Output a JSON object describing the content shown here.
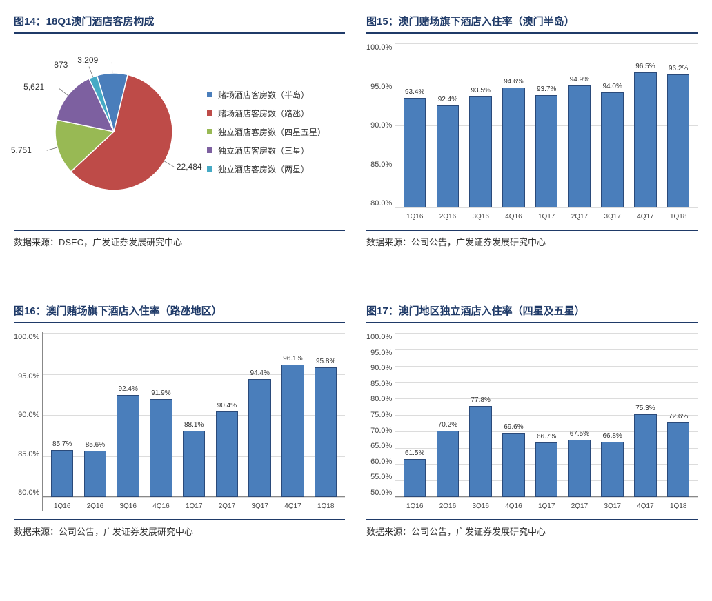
{
  "fig14": {
    "title": "图14：18Q1澳门酒店客房构成",
    "source": "数据来源：DSEC，广发证券发展研究中心",
    "type": "pie",
    "slices": [
      {
        "label": "赌场酒店客房数（半岛）",
        "value": 3209,
        "display": "3,209",
        "color": "#4a7ebb"
      },
      {
        "label": "赌场酒店客房数（路氹）",
        "value": 22484,
        "display": "22,484",
        "color": "#be4b48"
      },
      {
        "label": "独立酒店客房数（四星五星）",
        "value": 5751,
        "display": "5,751",
        "color": "#98b954"
      },
      {
        "label": "独立酒店客房数（三星）",
        "value": 5621,
        "display": "5,621",
        "color": "#7d60a0"
      },
      {
        "label": "独立酒店客房数（两星）",
        "value": 873,
        "display": "873",
        "color": "#46aac5"
      }
    ],
    "outline_color": "#ffffff",
    "label_fontsize": 12
  },
  "fig15": {
    "title": "图15：澳门赌场旗下酒店入住率（澳门半岛）",
    "source": "数据来源：公司公告，广发证券发展研究中心",
    "type": "bar",
    "ylim": [
      80,
      100
    ],
    "ytick_step": 5,
    "yticks": [
      "100.0%",
      "95.0%",
      "90.0%",
      "85.0%",
      "80.0%"
    ],
    "categories": [
      "1Q16",
      "2Q16",
      "3Q16",
      "4Q16",
      "1Q17",
      "2Q17",
      "3Q17",
      "4Q17",
      "1Q18"
    ],
    "values": [
      93.4,
      92.4,
      93.5,
      94.6,
      93.7,
      94.9,
      94.0,
      96.5,
      96.2
    ],
    "value_labels": [
      "93.4%",
      "92.4%",
      "93.5%",
      "94.6%",
      "93.7%",
      "94.9%",
      "94.0%",
      "96.5%",
      "96.2%"
    ],
    "bar_color": "#4a7ebb",
    "bar_border_color": "#2a4a7a",
    "grid_color": "#dcdcdc",
    "axis_color": "#888888",
    "label_fontsize": 11
  },
  "fig16": {
    "title": "图16：澳门赌场旗下酒店入住率（路氹地区）",
    "source": "数据来源：公司公告，广发证券发展研究中心",
    "type": "bar",
    "ylim": [
      80,
      100
    ],
    "ytick_step": 5,
    "yticks": [
      "100.0%",
      "95.0%",
      "90.0%",
      "85.0%",
      "80.0%"
    ],
    "categories": [
      "1Q16",
      "2Q16",
      "3Q16",
      "4Q16",
      "1Q17",
      "2Q17",
      "3Q17",
      "4Q17",
      "1Q18"
    ],
    "values": [
      85.7,
      85.6,
      92.4,
      91.9,
      88.1,
      90.4,
      94.4,
      96.1,
      95.8
    ],
    "value_labels": [
      "85.7%",
      "85.6%",
      "92.4%",
      "91.9%",
      "88.1%",
      "90.4%",
      "94.4%",
      "96.1%",
      "95.8%"
    ],
    "bar_color": "#4a7ebb",
    "bar_border_color": "#2a4a7a",
    "grid_color": "#dcdcdc",
    "axis_color": "#888888",
    "label_fontsize": 11
  },
  "fig17": {
    "title": "图17：澳门地区独立酒店入住率（四星及五星）",
    "source": "数据来源：公司公告，广发证券发展研究中心",
    "type": "bar",
    "ylim": [
      50,
      100
    ],
    "ytick_step": 5,
    "yticks": [
      "100.0%",
      "95.0%",
      "90.0%",
      "85.0%",
      "80.0%",
      "75.0%",
      "70.0%",
      "65.0%",
      "60.0%",
      "55.0%",
      "50.0%"
    ],
    "categories": [
      "1Q16",
      "2Q16",
      "3Q16",
      "4Q16",
      "1Q17",
      "2Q17",
      "3Q17",
      "4Q17",
      "1Q18"
    ],
    "values": [
      61.5,
      70.2,
      77.8,
      69.6,
      66.7,
      67.5,
      66.8,
      75.3,
      72.6
    ],
    "value_labels": [
      "61.5%",
      "70.2%",
      "77.8%",
      "69.6%",
      "66.7%",
      "67.5%",
      "66.8%",
      "75.3%",
      "72.6%"
    ],
    "bar_color": "#4a7ebb",
    "bar_border_color": "#2a4a7a",
    "grid_color": "#dcdcdc",
    "axis_color": "#888888",
    "label_fontsize": 11
  }
}
